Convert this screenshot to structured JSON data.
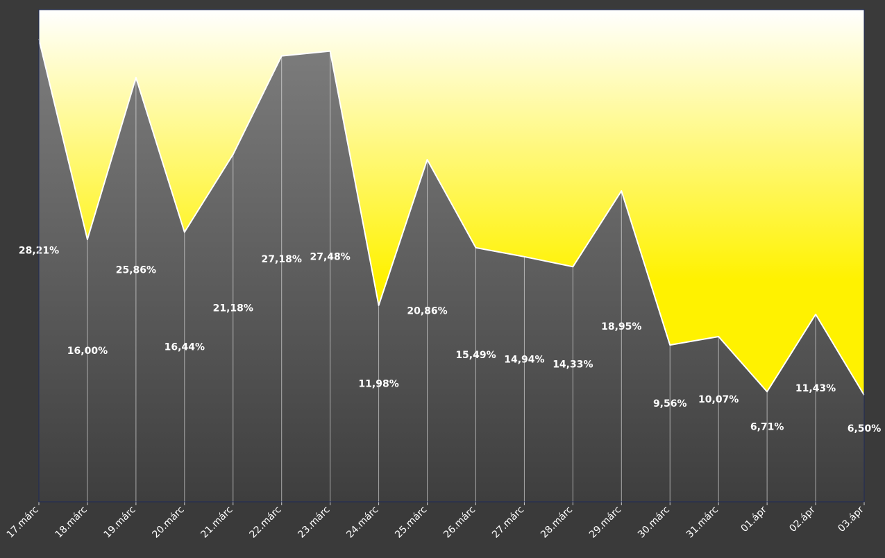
{
  "chart_data": {
    "type": "area",
    "categories": [
      "17.márc",
      "18.márc",
      "19.márc",
      "20.márc",
      "21.márc",
      "22.márc",
      "23.márc",
      "24.márc",
      "25.márc",
      "26.márc",
      "27.márc",
      "28.márc",
      "29.márc",
      "30.márc",
      "31.márc",
      "01.ápr",
      "02.ápr",
      "03.ápr"
    ],
    "values": [
      28.21,
      16.0,
      25.86,
      16.44,
      21.18,
      27.18,
      27.48,
      11.98,
      20.86,
      15.49,
      14.94,
      14.33,
      18.95,
      9.56,
      10.07,
      6.71,
      11.43,
      6.5
    ],
    "labels": [
      "28,21%",
      "16,00%",
      "25,86%",
      "16,44%",
      "21,18%",
      "27,18%",
      "27,48%",
      "11,98%",
      "20,86%",
      "15,49%",
      "14,94%",
      "14,33%",
      "18,95%",
      "9,56%",
      "10,07%",
      "6,71%",
      "11,43%",
      "6,50%"
    ],
    "title": "",
    "xlabel": "",
    "ylabel": "",
    "ylim": [
      0,
      30
    ],
    "grid": false,
    "legend": "none",
    "colors": {
      "page_background": "#3a3a3a",
      "plot_background_top": "#ffffff",
      "plot_background_bottom": "#fff200",
      "area_fill_top": "#7d7d7d",
      "area_fill_bottom": "#3e3e3e",
      "area_outline": "#ffffff",
      "plot_border": "#1e2a5a",
      "text": "#ffffff"
    }
  }
}
